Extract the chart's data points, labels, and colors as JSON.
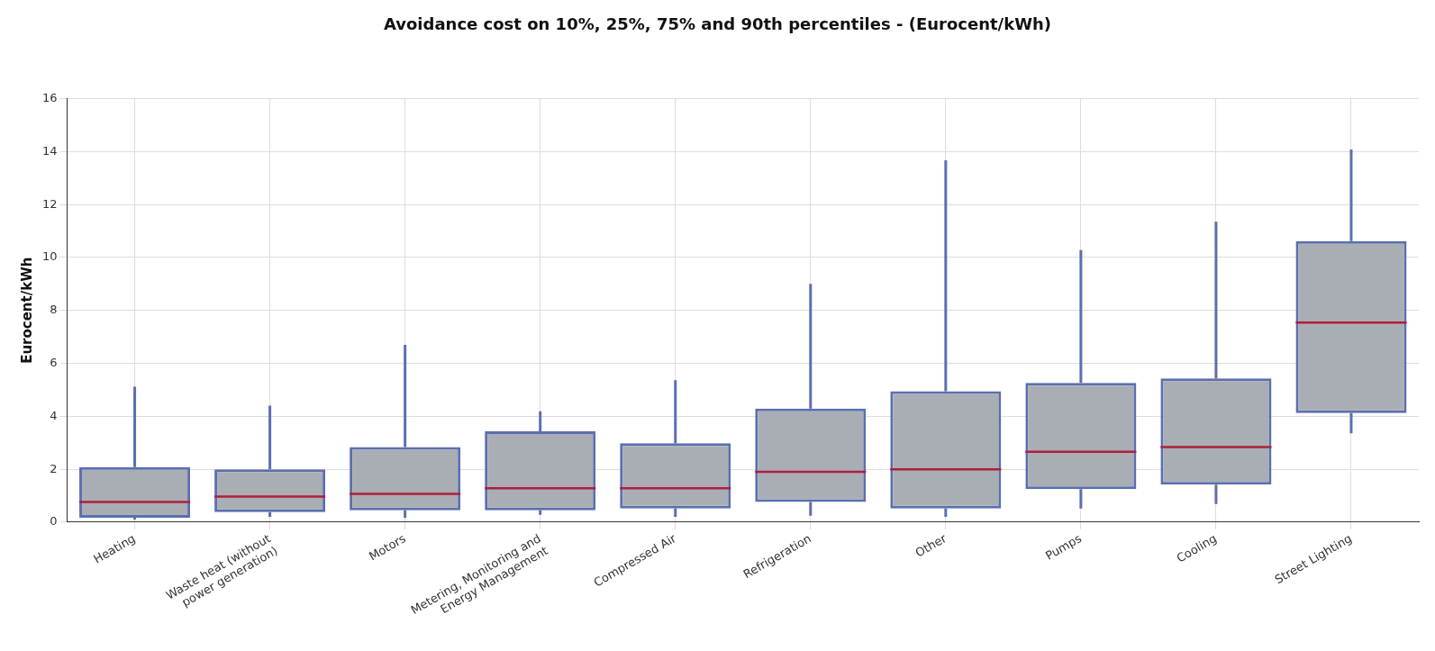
{
  "chart_data": {
    "type": "box",
    "title": "Avoidance cost on 10%, 25%, 75% and 90th percentiles - (Eurocent/kWh)",
    "ylabel": "Eurocent/kWh",
    "categories": [
      "Heating",
      "Waste heat (without power generation)",
      "Motors",
      "Metering, Monitoring and Energy Management",
      "Compressed Air",
      "Refrigeration",
      "Other",
      "Pumps",
      "Cooling",
      "Street Lighting"
    ],
    "series": [
      {
        "color": "#5b6fb0",
        "boxes": [
          {
            "low": 0.1,
            "q1": 0.17,
            "median": 0.76,
            "q3": 2.08,
            "high": 5.12
          },
          {
            "low": 0.2,
            "q1": 0.38,
            "median": 0.97,
            "q3": 2.0,
            "high": 4.4
          },
          {
            "low": 0.17,
            "q1": 0.45,
            "median": 1.07,
            "q3": 2.84,
            "high": 6.7
          },
          {
            "low": 0.28,
            "q1": 0.45,
            "median": 1.28,
            "q3": 3.43,
            "high": 4.19
          },
          {
            "low": 0.2,
            "q1": 0.52,
            "median": 1.28,
            "q3": 2.98,
            "high": 5.36
          },
          {
            "low": 0.24,
            "q1": 0.76,
            "median": 1.9,
            "q3": 4.29,
            "high": 9.0
          },
          {
            "low": 0.2,
            "q1": 0.52,
            "median": 2.0,
            "q3": 4.95,
            "high": 13.67
          },
          {
            "low": 0.52,
            "q1": 1.25,
            "median": 2.66,
            "q3": 5.26,
            "high": 10.28
          },
          {
            "low": 0.69,
            "q1": 1.42,
            "median": 2.84,
            "q3": 5.43,
            "high": 11.35
          },
          {
            "low": 3.36,
            "q1": 4.12,
            "median": 7.54,
            "q3": 10.62,
            "high": 14.08
          }
        ]
      }
    ],
    "ylim": [
      0,
      16
    ],
    "yticks": [
      0,
      2,
      4,
      6,
      8,
      10,
      12,
      14,
      16
    ],
    "grid": true
  }
}
